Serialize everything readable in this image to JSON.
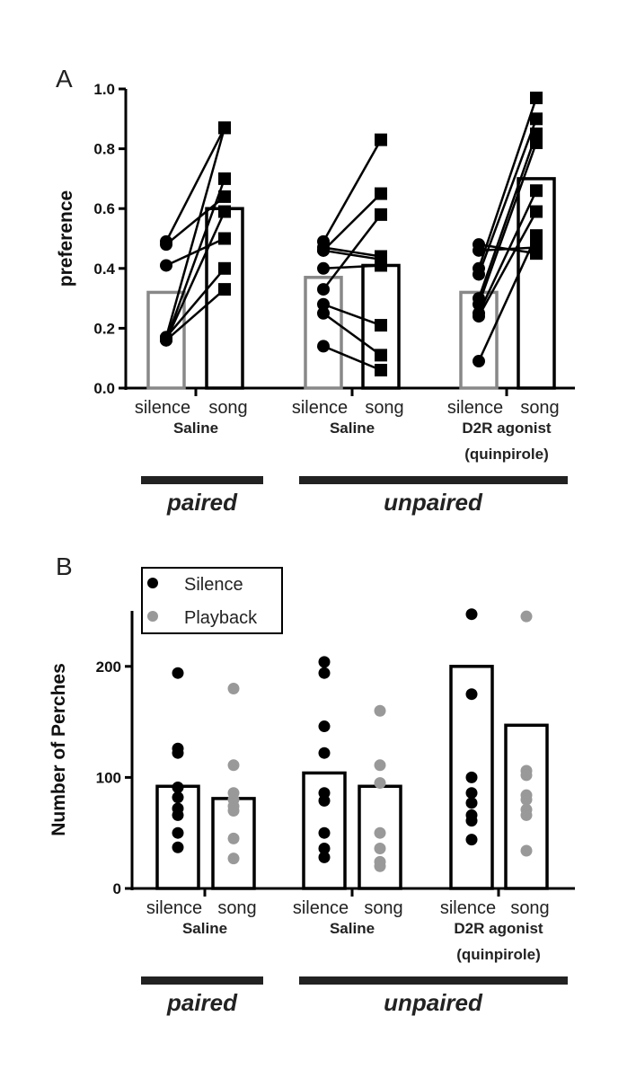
{
  "chart_data": [
    {
      "type": "bar",
      "panel": "A",
      "ylabel": "preference",
      "ylim": [
        0,
        1
      ],
      "yticks": [
        "0.0",
        "0.2",
        "0.4",
        "0.6",
        "0.8",
        "1.0"
      ],
      "categories": [
        "silence",
        "song",
        "silence",
        "song",
        "silence",
        "song"
      ],
      "group_labels": [
        "Saline",
        "Saline",
        "D2R agonist",
        "(quinpirole)"
      ],
      "condition_labels": [
        "paired",
        "unpaired"
      ],
      "bars": [
        0.32,
        0.6,
        0.37,
        0.41,
        0.32,
        0.7
      ],
      "pairs": [
        {
          "silence": [
            0.49,
            0.48,
            0.41,
            0.17,
            0.16,
            0.16,
            0.17,
            0.16
          ],
          "song": [
            0.87,
            0.64,
            0.5,
            0.87,
            0.7,
            0.59,
            0.4,
            0.33
          ]
        },
        {
          "silence": [
            0.46,
            0.49,
            0.33,
            0.47,
            0.46,
            0.4,
            0.28,
            0.25,
            0.14
          ],
          "song": [
            0.65,
            0.83,
            0.58,
            0.44,
            0.43,
            0.41,
            0.21,
            0.11,
            0.06
          ]
        },
        {
          "silence": [
            0.48,
            0.46,
            0.4,
            0.38,
            0.3,
            0.28,
            0.25,
            0.24,
            0.09
          ],
          "song": [
            0.45,
            0.47,
            0.97,
            0.9,
            0.85,
            0.82,
            0.66,
            0.59,
            0.51
          ]
        }
      ]
    },
    {
      "type": "bar",
      "panel": "B",
      "ylabel": "Number of Perches",
      "ylim": [
        0,
        250
      ],
      "yticks": [
        "0",
        "100",
        "200"
      ],
      "categories": [
        "silence",
        "song",
        "silence",
        "song",
        "silence",
        "song"
      ],
      "group_labels": [
        "Saline",
        "Saline",
        "D2R agonist",
        "(quinpirole)"
      ],
      "condition_labels": [
        "paired",
        "unpaired"
      ],
      "legend": [
        "Silence",
        "Playback"
      ],
      "legend_position": "top-left",
      "bars": [
        92,
        81,
        104,
        92,
        200,
        147
      ],
      "points": [
        [
          194,
          126,
          122,
          91,
          82,
          72,
          66,
          50,
          37
        ],
        [
          180,
          111,
          86,
          80,
          74,
          70,
          45,
          27
        ],
        [
          204,
          194,
          146,
          122,
          86,
          79,
          50,
          36,
          28
        ],
        [
          160,
          111,
          95,
          50,
          36,
          24,
          20
        ],
        [
          247,
          175,
          100,
          86,
          77,
          66,
          61,
          44
        ],
        [
          245,
          106,
          102,
          84,
          80,
          71,
          66,
          34
        ]
      ]
    }
  ],
  "panel_labels": [
    "A",
    "B"
  ],
  "colors": {
    "silence": "#000000",
    "playback": "#999999",
    "silence_bar_A": "#888888"
  }
}
